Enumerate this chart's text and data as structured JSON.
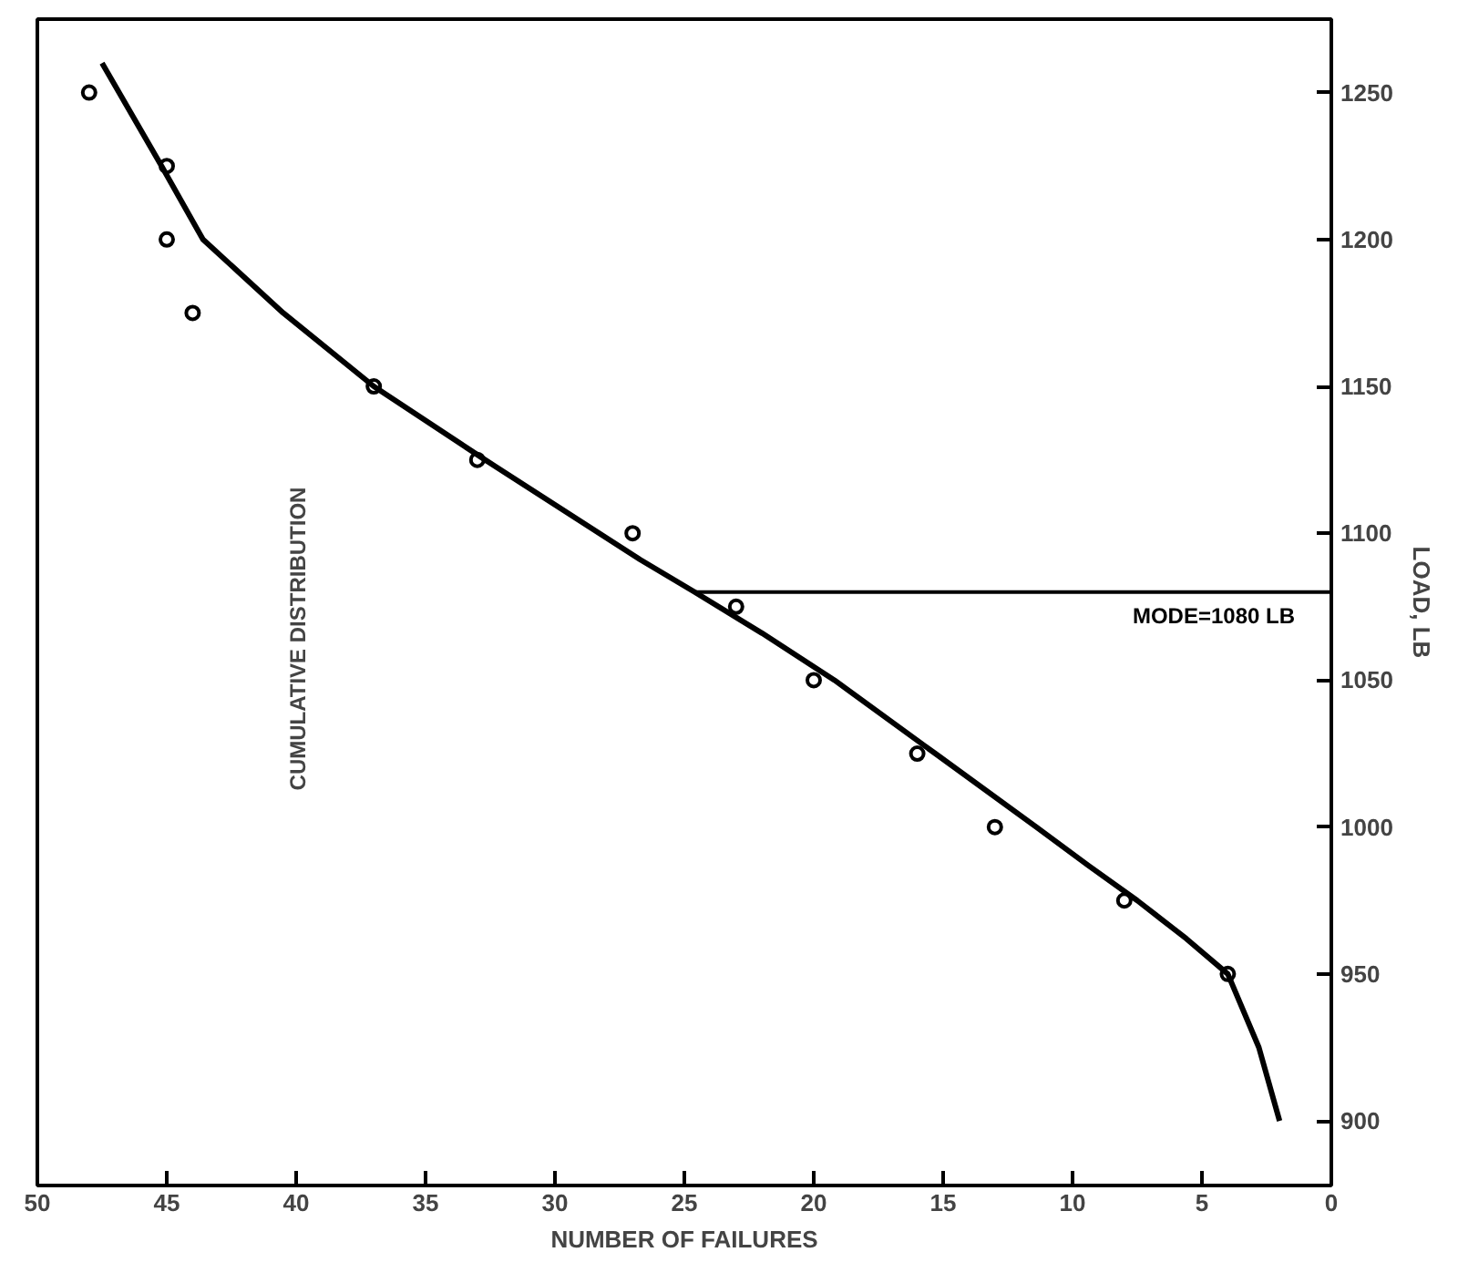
{
  "chart_data": {
    "type": "scatter",
    "xlabel": "NUMBER OF FAILURES",
    "ylabel": "LOAD, LB",
    "xlim": [
      50,
      0
    ],
    "ylim": [
      878,
      1275
    ],
    "xticks": [
      50,
      45,
      40,
      35,
      30,
      25,
      20,
      15,
      10,
      5,
      0
    ],
    "yticks": [
      900,
      950,
      1000,
      1050,
      1100,
      1150,
      1200,
      1250
    ],
    "grid": false,
    "series": [
      {
        "color": "#000000",
        "marker": "circle",
        "x": [
          48,
          45,
          45,
          44,
          37,
          33,
          27,
          23,
          20,
          16,
          13,
          8,
          4
        ],
        "values": [
          1250,
          1225,
          1200,
          1175,
          1150,
          1125,
          1100,
          1075,
          1050,
          1025,
          1000,
          975,
          950
        ]
      },
      {
        "type": "line",
        "color": "#000000",
        "line_style": "solid",
        "x": [
          2.0,
          2.8,
          4.0,
          5.6,
          7.5,
          9.4,
          11.4,
          15.3,
          19.2,
          22.0,
          24.6,
          26.7,
          32.7,
          37.0,
          40.5,
          43.6,
          45.2,
          47.5
        ],
        "values": [
          900,
          925,
          950,
          962,
          975,
          987,
          1000,
          1025,
          1050,
          1066,
          1080,
          1091,
          1125,
          1150,
          1175,
          1200,
          1225,
          1260
        ]
      }
    ],
    "ref_lines": [
      {
        "axis": "y",
        "value": 1080,
        "label": "MODE=1080 LB",
        "color": "#000000"
      }
    ],
    "annotations": [
      "CUMULATIVE DISTRIBUTION"
    ]
  }
}
